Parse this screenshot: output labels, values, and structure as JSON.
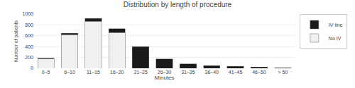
{
  "chart_data": {
    "type": "bar",
    "stacked": true,
    "title": "Distribution by length of procedure",
    "xlabel": "Minutes",
    "ylabel": "Number of patients",
    "categories": [
      "0–5",
      "6–10",
      "11–15",
      "16–20",
      "21–25",
      "26–30",
      "31–35",
      "36–40",
      "41–45",
      "46–50",
      "> 50"
    ],
    "series": [
      {
        "name": "No IV",
        "color": "#f0f0f0",
        "values": [
          175,
          620,
          870,
          660,
          0,
          0,
          0,
          0,
          0,
          0,
          0
        ]
      },
      {
        "name": "IV line",
        "color": "#1a1a1a",
        "values": [
          10,
          25,
          50,
          70,
          400,
          170,
          80,
          50,
          35,
          20,
          10
        ]
      }
    ],
    "ylim": [
      0,
      1000
    ],
    "yticks": [
      0,
      200,
      400,
      600,
      800,
      1000
    ],
    "grid": true,
    "legend": "upper right"
  }
}
